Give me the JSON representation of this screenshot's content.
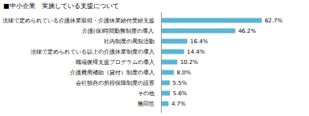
{
  "chart_data": {
    "type": "bar",
    "orientation": "horizontal",
    "title": "■中小企業　実施している支援について",
    "categories": [
      "法律で定められている介護休業取得・介護休業給付受給支援",
      "介護(保)時間勤務制度の導入",
      "社内制度の周知活動",
      "法律で定められている以上の介護休業制度の導入",
      "職場復帰支援プログラムの導入",
      "介護費用補助（貸付）制度の導入",
      "会社独自の所得保障制度の設置",
      "その他",
      "無回答"
    ],
    "values": [
      62.7,
      46.2,
      16.4,
      14.4,
      10.2,
      8.0,
      5.5,
      5.6,
      4.7
    ],
    "value_labels": [
      "62.7%",
      "46.2%",
      "16.4%",
      "14.4%",
      "10.2%",
      "8.0%",
      "5.5%",
      "5.6%",
      "4.7%"
    ],
    "color": "#5ab4d6",
    "xlim": [
      0,
      75
    ],
    "tick_labels": "y",
    "data_labels": true,
    "grid": false
  }
}
